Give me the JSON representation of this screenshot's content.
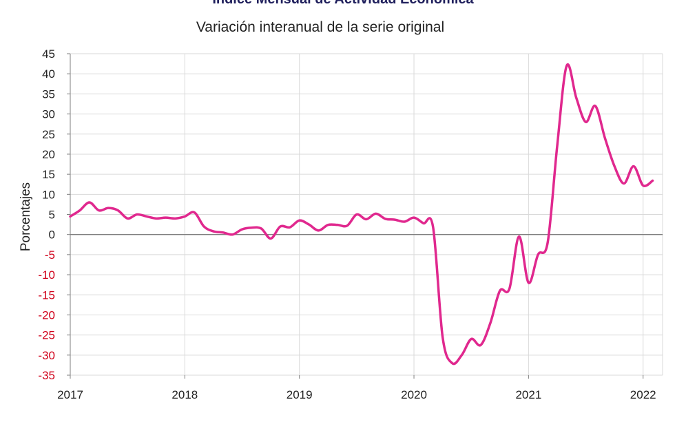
{
  "chart_data": {
    "type": "line",
    "title": "Índice Mensual de Actividad Económica",
    "subtitle": "Variación interanual de la serie original",
    "ylabel": "Porcentajes",
    "xlabel": "",
    "ylim": [
      -35,
      45
    ],
    "xlim": [
      2017.0,
      2022.17
    ],
    "y_ticks": [
      45,
      40,
      35,
      30,
      25,
      20,
      15,
      10,
      5,
      0,
      -5,
      -10,
      -15,
      -20,
      -25,
      -30,
      -35
    ],
    "x_ticks": [
      "2017",
      "2018",
      "2019",
      "2020",
      "2021",
      "2022"
    ],
    "grid": true,
    "colors": {
      "line": "#e0288e",
      "negative_tick": "#d0021b",
      "grid": "#d9d9d9",
      "zero_line": "#7f7f7f"
    },
    "series": [
      {
        "x": [
          2017.0,
          2017.083,
          2017.167,
          2017.25,
          2017.333,
          2017.417,
          2017.5,
          2017.583,
          2017.667,
          2017.75,
          2017.833,
          2017.917,
          2018.0,
          2018.083,
          2018.167,
          2018.25,
          2018.333,
          2018.417,
          2018.5,
          2018.583,
          2018.667,
          2018.75,
          2018.833,
          2018.917,
          2019.0,
          2019.083,
          2019.167,
          2019.25,
          2019.333,
          2019.417,
          2019.5,
          2019.583,
          2019.667,
          2019.75,
          2019.833,
          2019.917,
          2020.0,
          2020.083,
          2020.167,
          2020.25,
          2020.333,
          2020.417,
          2020.5,
          2020.583,
          2020.667,
          2020.75,
          2020.833,
          2020.917,
          2021.0,
          2021.083,
          2021.167,
          2021.25,
          2021.333,
          2021.417,
          2021.5,
          2021.583,
          2021.667,
          2021.75,
          2021.833,
          2021.917,
          2022.0,
          2022.083
        ],
        "values": [
          4.5,
          6.0,
          8.0,
          6.0,
          6.6,
          6.0,
          4.0,
          5.0,
          4.5,
          4.0,
          4.2,
          4.0,
          4.5,
          5.5,
          2.0,
          0.8,
          0.5,
          0.0,
          1.3,
          1.7,
          1.5,
          -1.0,
          2.0,
          1.8,
          3.5,
          2.5,
          1.0,
          2.4,
          2.4,
          2.2,
          5.0,
          3.8,
          5.2,
          3.9,
          3.7,
          3.2,
          4.2,
          2.8,
          1.8,
          -25.5,
          -32.0,
          -30.0,
          -26.0,
          -27.5,
          -22.0,
          -14.0,
          -13.5,
          -0.5,
          -12.0,
          -5.0,
          -2.0,
          22.0,
          42.0,
          34.0,
          28.0,
          32.0,
          24.0,
          17.0,
          12.7,
          17.0,
          12.2,
          13.4
        ]
      }
    ]
  }
}
